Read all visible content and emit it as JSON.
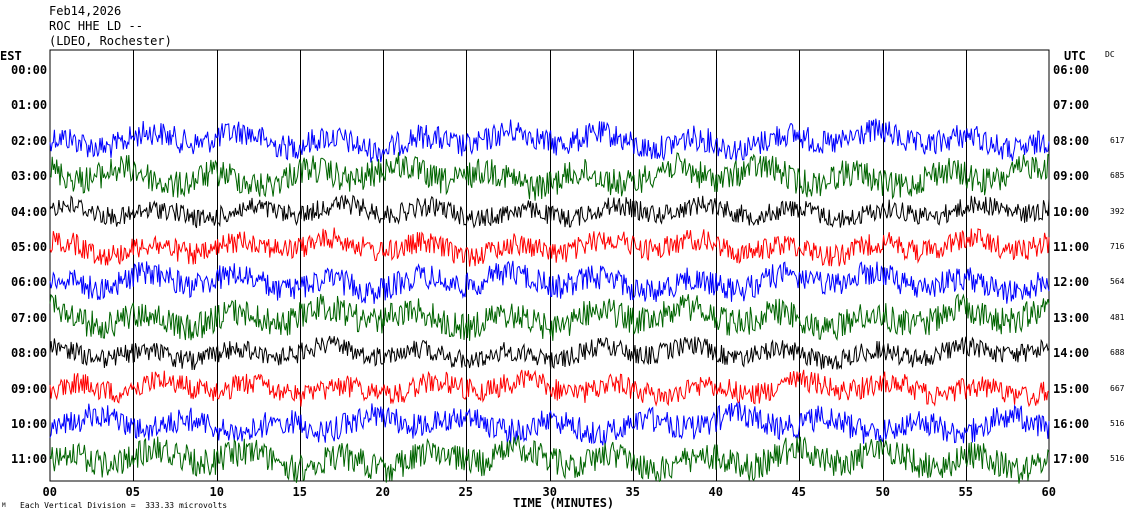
{
  "header": {
    "date": "Feb14,2026",
    "station": "ROC HHE LD --",
    "network": "(LDEO, Rochester)"
  },
  "corner_labels": {
    "left": "EST",
    "right": "UTC",
    "dc": "DC"
  },
  "footer": {
    "xlabel": "TIME (MINUTES)",
    "scale_note": "Each Vertical Division =  333.33 microvolts",
    "mark": "M"
  },
  "chart_data": {
    "type": "line",
    "title": "Feb14,2026 ROC HHE LD -- (LDEO, Rochester)",
    "xlabel": "TIME (MINUTES)",
    "xlim": [
      0,
      60
    ],
    "x_ticks": [
      "00",
      "05",
      "10",
      "15",
      "20",
      "25",
      "30",
      "35",
      "40",
      "45",
      "50",
      "55",
      "60"
    ],
    "grid": true,
    "trace_color_cycle": [
      "#0000ff",
      "#006400",
      "#000000",
      "#ff0000"
    ],
    "rows": [
      {
        "est": "00:00",
        "utc": "06:00",
        "dc": ""
      },
      {
        "est": "01:00",
        "utc": "07:00",
        "dc": ""
      },
      {
        "est": "02:00",
        "utc": "08:00",
        "dc": "617",
        "color": "#0000ff"
      },
      {
        "est": "03:00",
        "utc": "09:00",
        "dc": "685",
        "color": "#006400"
      },
      {
        "est": "04:00",
        "utc": "10:00",
        "dc": "392",
        "color": "#000000"
      },
      {
        "est": "05:00",
        "utc": "11:00",
        "dc": "716",
        "color": "#ff0000"
      },
      {
        "est": "06:00",
        "utc": "12:00",
        "dc": "564",
        "color": "#0000ff"
      },
      {
        "est": "07:00",
        "utc": "13:00",
        "dc": "481",
        "color": "#006400"
      },
      {
        "est": "08:00",
        "utc": "14:00",
        "dc": "688",
        "color": "#000000"
      },
      {
        "est": "09:00",
        "utc": "15:00",
        "dc": "667",
        "color": "#ff0000"
      },
      {
        "est": "10:00",
        "utc": "16:00",
        "dc": "516",
        "color": "#0000ff"
      },
      {
        "est": "11:00",
        "utc": "17:00",
        "dc": "516",
        "color": "#006400"
      }
    ],
    "vertical_division_microvolts": 333.33
  }
}
